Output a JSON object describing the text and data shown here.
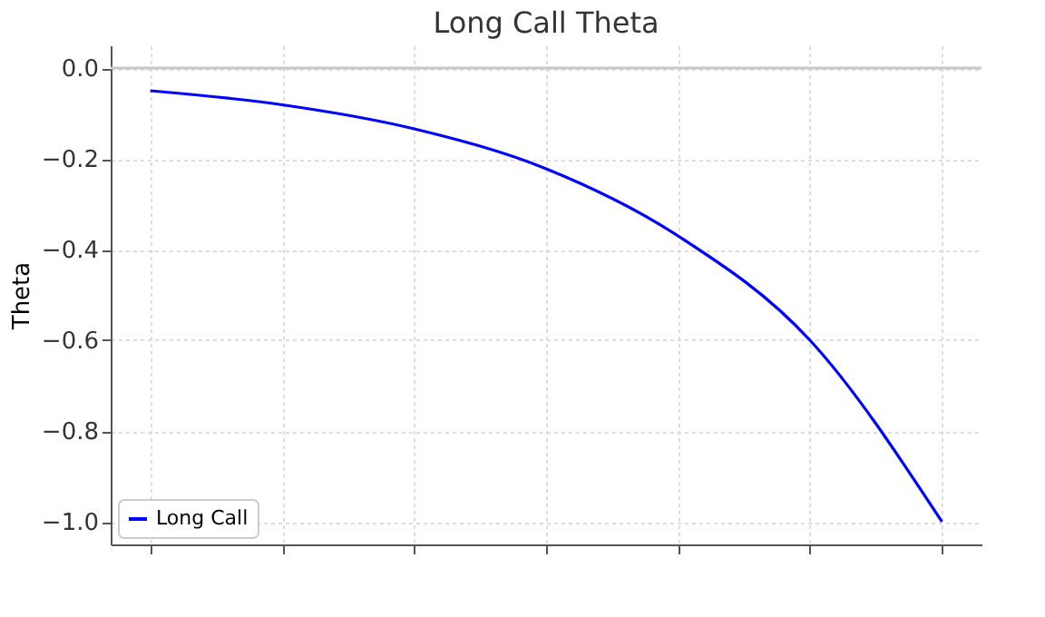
{
  "chart_data": {
    "type": "line",
    "title": "Long Call Theta",
    "ylabel": "Theta",
    "categories": [
      null,
      null,
      null,
      null,
      null,
      null,
      null
    ],
    "series": [
      {
        "name": "Long Call",
        "color": "#0000ff",
        "values": [
          -0.05,
          -0.081,
          -0.134,
          -0.222,
          -0.37,
          -0.6,
          -1.0
        ]
      }
    ],
    "ylim": [
      -1.05,
      0.05
    ],
    "yticks": [
      {
        "value": -1.0,
        "label": "−1.0"
      },
      {
        "value": -0.8,
        "label": "−0.8"
      },
      {
        "value": -0.6,
        "label": "−0.6"
      },
      {
        "value": -0.4,
        "label": "−0.4"
      },
      {
        "value": -0.2,
        "label": "−0.2"
      },
      {
        "value": 0.0,
        "label": "0.0"
      }
    ],
    "ref_lines": [
      {
        "axis": "y",
        "value": 0,
        "color": "#c8c8c8"
      }
    ],
    "grid": true,
    "legend": "bottom left",
    "tick_labels": "y",
    "line_style": "solid",
    "marker": "none"
  }
}
